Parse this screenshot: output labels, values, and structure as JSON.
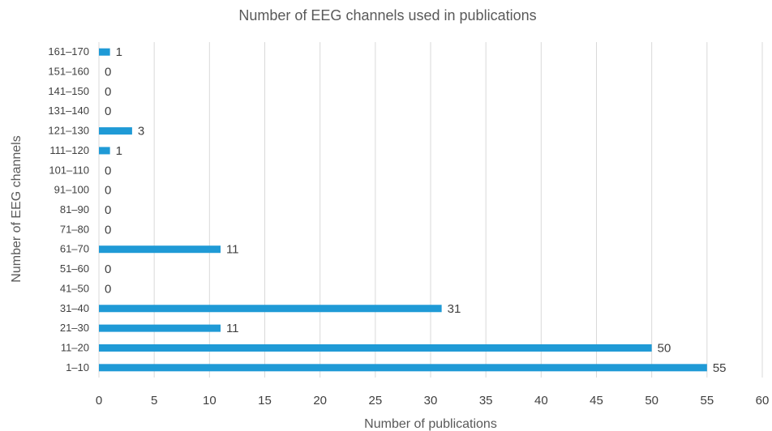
{
  "chart_data": {
    "type": "bar",
    "orientation": "horizontal",
    "title": "Number of EEG channels used in publications",
    "xlabel": "Number of publications",
    "ylabel": "Number of EEG channels",
    "categories": [
      "1–10",
      "11–20",
      "21–30",
      "31–40",
      "41–50",
      "51–60",
      "61–70",
      "71–80",
      "81–90",
      "91–100",
      "101–110",
      "111–120",
      "121–130",
      "131–140",
      "141–150",
      "151–160",
      "161–170"
    ],
    "values": [
      55,
      50,
      11,
      31,
      0,
      0,
      11,
      0,
      0,
      0,
      0,
      1,
      3,
      0,
      0,
      0,
      1
    ],
    "xlim": [
      0,
      60
    ],
    "xticks": [
      "0",
      "5",
      "10",
      "15",
      "20",
      "25",
      "30",
      "35",
      "40",
      "45",
      "50",
      "55",
      "60"
    ],
    "grid": "vertical",
    "legend": "none",
    "bar_color": "#1f9ad6"
  }
}
